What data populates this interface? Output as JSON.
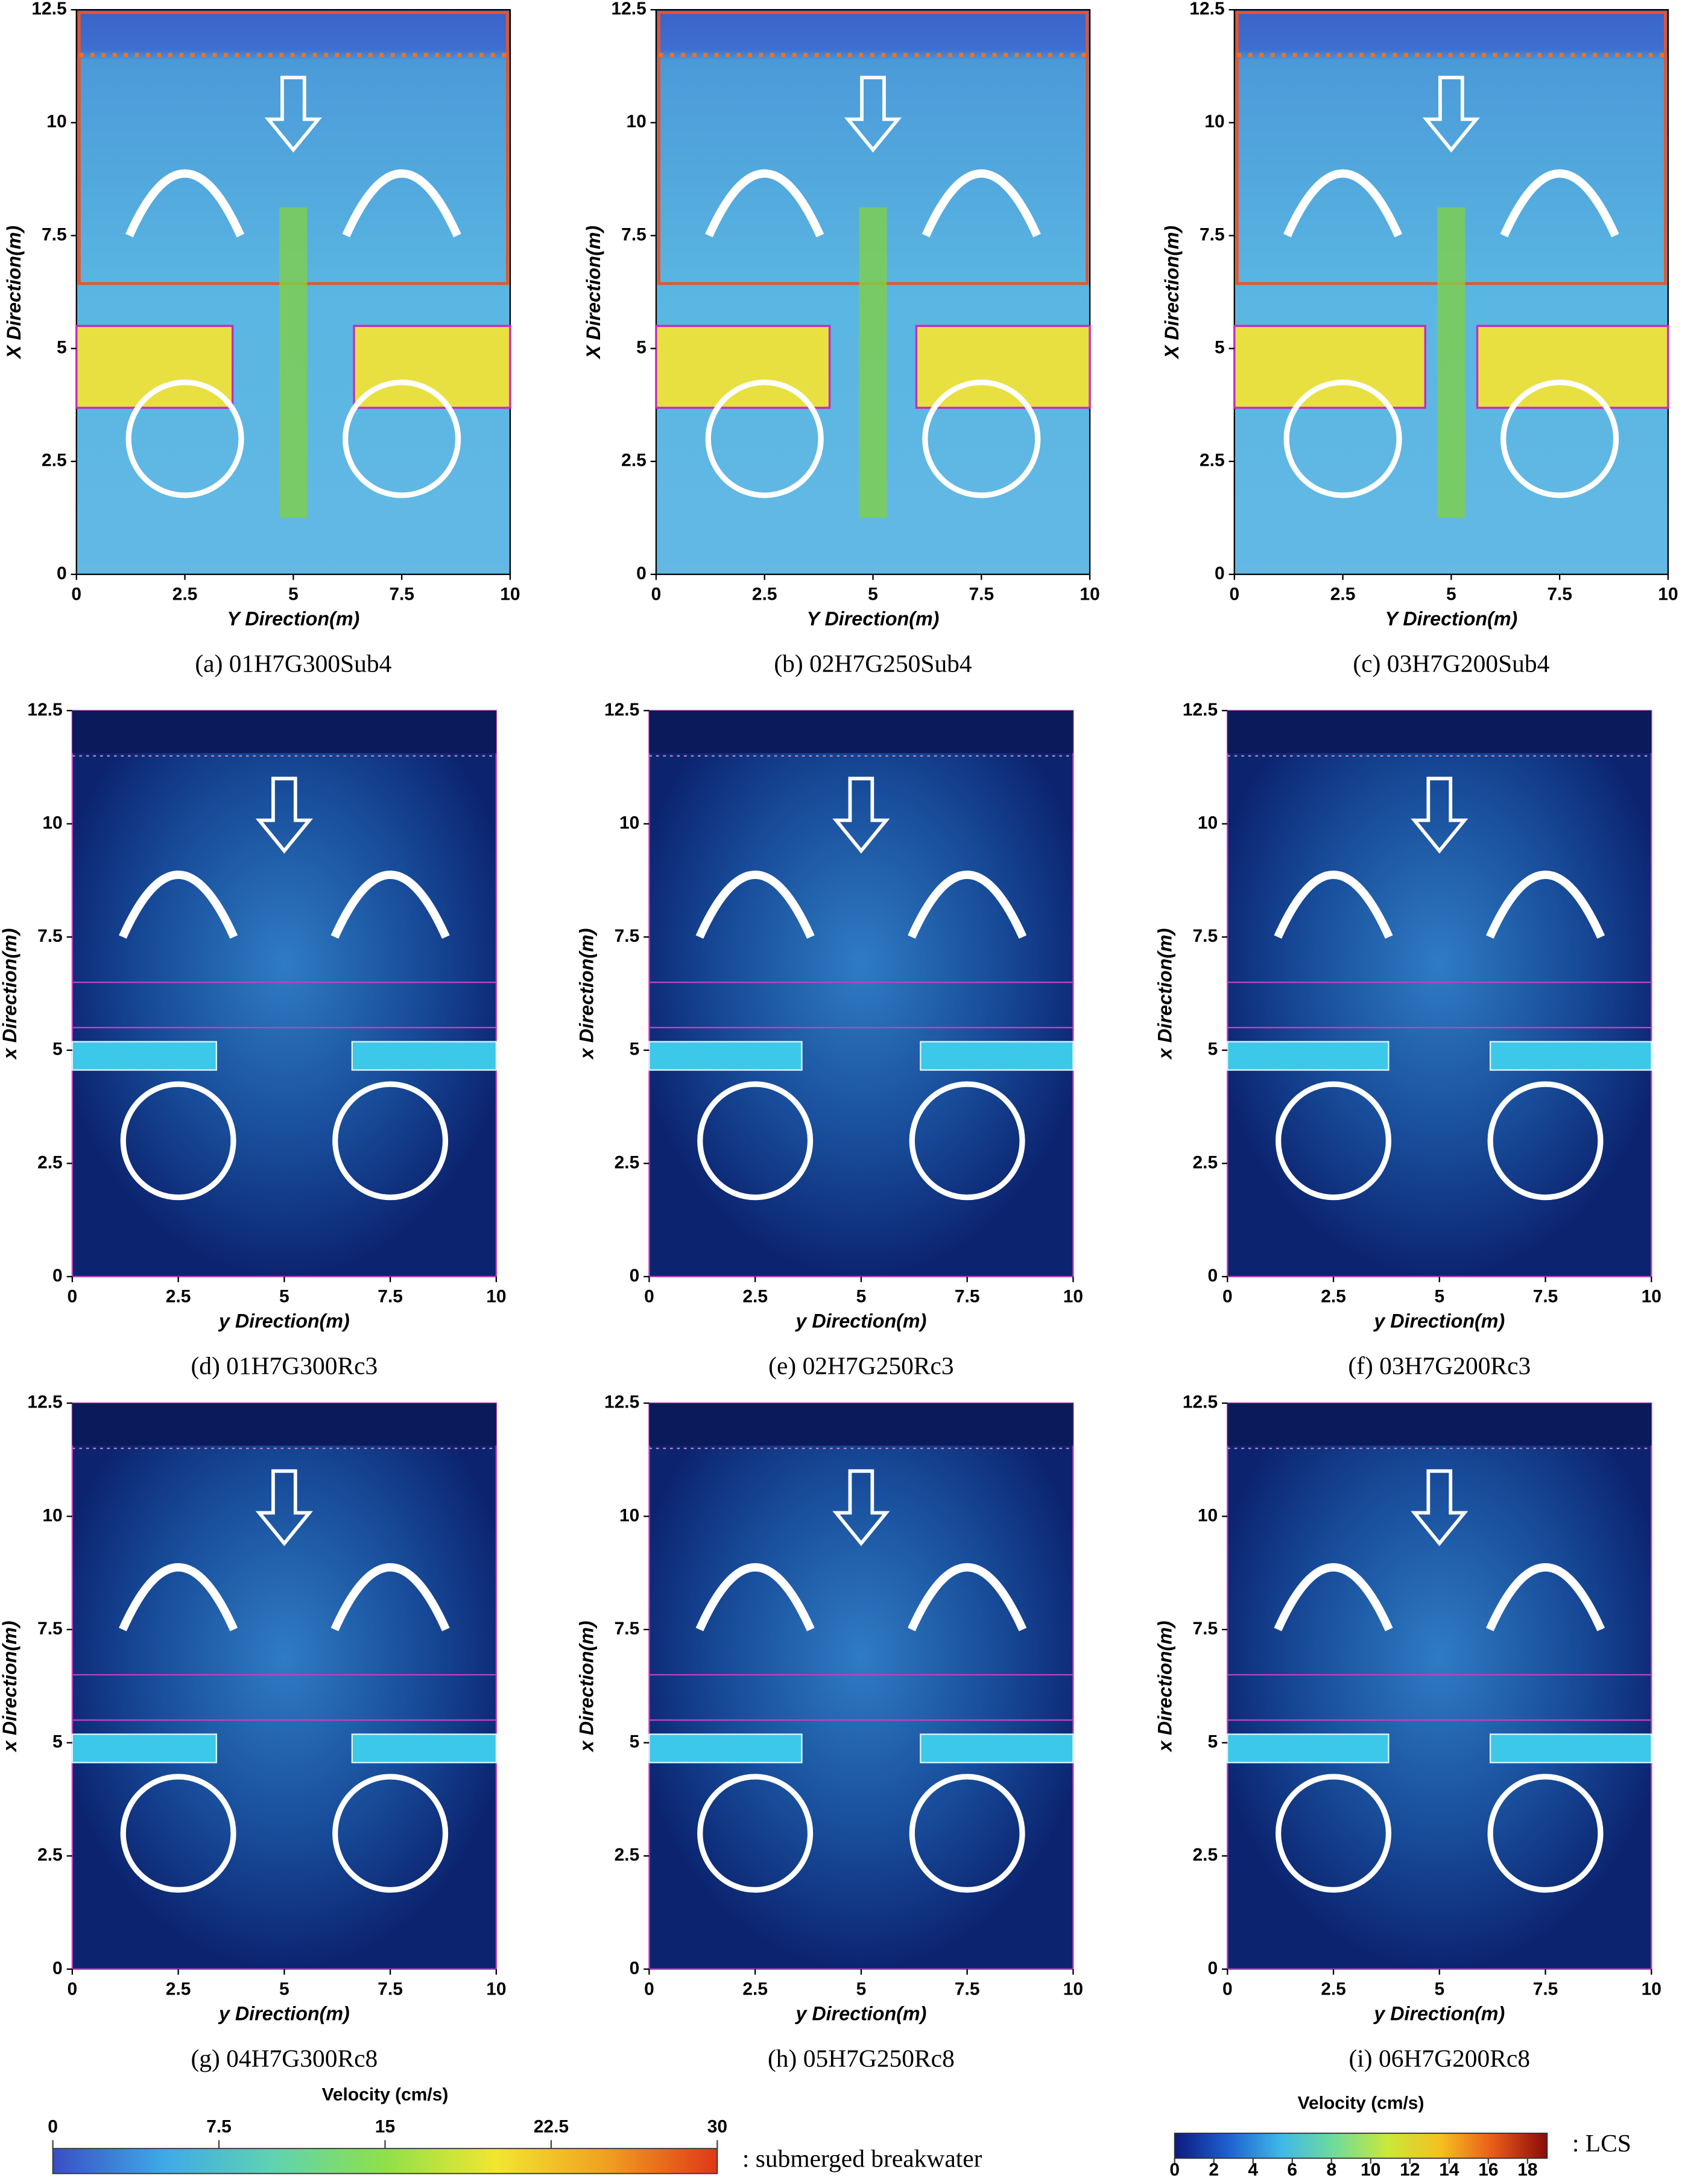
{
  "chart_data": [
    {
      "type": "vector-field",
      "caption": "(a) 01H7G300Sub4",
      "x_label": "Y Direction(m)",
      "y_label": "X Direction(m)",
      "xlim": [
        0,
        10
      ],
      "ylim": [
        0,
        12.5
      ],
      "xticks": [
        0,
        2.5,
        5,
        7.5,
        10
      ],
      "yticks": [
        0,
        2.5,
        5,
        7.5,
        10,
        12.5
      ]
    },
    {
      "type": "vector-field",
      "caption": "(b) 02H7G250Sub4",
      "x_label": "Y Direction(m)",
      "y_label": "X Direction(m)",
      "xlim": [
        0,
        10
      ],
      "ylim": [
        0,
        12.5
      ],
      "xticks": [
        0,
        2.5,
        5,
        7.5,
        10
      ],
      "yticks": [
        0,
        2.5,
        5,
        7.5,
        10,
        12.5
      ]
    },
    {
      "type": "vector-field",
      "caption": "(c) 03H7G200Sub4",
      "x_label": "Y Direction(m)",
      "y_label": "X Direction(m)",
      "xlim": [
        0,
        10
      ],
      "ylim": [
        0,
        12.5
      ],
      "xticks": [
        0,
        2.5,
        5,
        7.5,
        10
      ],
      "yticks": [
        0,
        2.5,
        5,
        7.5,
        10,
        12.5
      ]
    },
    {
      "type": "vector-field",
      "caption": "(d) 01H7G300Rc3",
      "x_label": "y Direction(m)",
      "y_label": "x Direction(m)",
      "xlim": [
        0,
        10
      ],
      "ylim": [
        0,
        12.5
      ],
      "xticks": [
        0,
        2.5,
        5,
        7.5,
        10
      ],
      "yticks": [
        0,
        2.5,
        5,
        7.5,
        10,
        12.5
      ]
    },
    {
      "type": "vector-field",
      "caption": "(e) 02H7G250Rc3",
      "x_label": "y Direction(m)",
      "y_label": "x Direction(m)",
      "xlim": [
        0,
        10
      ],
      "ylim": [
        0,
        12.5
      ],
      "xticks": [
        0,
        2.5,
        5,
        7.5,
        10
      ],
      "yticks": [
        0,
        2.5,
        5,
        7.5,
        10,
        12.5
      ]
    },
    {
      "type": "vector-field",
      "caption": "(f) 03H7G200Rc3",
      "x_label": "y Direction(m)",
      "y_label": "x Direction(m)",
      "xlim": [
        0,
        10
      ],
      "ylim": [
        0,
        12.5
      ],
      "xticks": [
        0,
        2.5,
        5,
        7.5,
        10
      ],
      "yticks": [
        0,
        2.5,
        5,
        7.5,
        10,
        12.5
      ]
    },
    {
      "type": "vector-field",
      "caption": "(g) 04H7G300Rc8",
      "x_label": "y Direction(m)",
      "y_label": "x Direction(m)",
      "xlim": [
        0,
        10
      ],
      "ylim": [
        0,
        12.5
      ],
      "xticks": [
        0,
        2.5,
        5,
        7.5,
        10
      ],
      "yticks": [
        0,
        2.5,
        5,
        7.5,
        10,
        12.5
      ]
    },
    {
      "type": "vector-field",
      "caption": "(h) 05H7G250Rc8",
      "x_label": "y Direction(m)",
      "y_label": "x Direction(m)",
      "xlim": [
        0,
        10
      ],
      "ylim": [
        0,
        12.5
      ],
      "xticks": [
        0,
        2.5,
        5,
        7.5,
        10
      ],
      "yticks": [
        0,
        2.5,
        5,
        7.5,
        10,
        12.5
      ]
    },
    {
      "type": "vector-field",
      "caption": "(i) 06H7G200Rc8",
      "x_label": "y Direction(m)",
      "y_label": "x Direction(m)",
      "xlim": [
        0,
        10
      ],
      "ylim": [
        0,
        12.5
      ],
      "xticks": [
        0,
        2.5,
        5,
        7.5,
        10
      ],
      "yticks": [
        0,
        2.5,
        5,
        7.5,
        10,
        12.5
      ]
    },
    {
      "type": "colorbar",
      "title": "Velocity (cm/s)",
      "note": ": submerged breakwater",
      "lim": [
        0,
        30
      ],
      "ticks": [
        0,
        7.5,
        15,
        22.5,
        30
      ],
      "colors": [
        "#3a4fc4",
        "#3fa9e8",
        "#5fd3b0",
        "#8fe04a",
        "#f2e630",
        "#f0a020",
        "#e03818"
      ]
    },
    {
      "type": "colorbar",
      "title": "Velocity (cm/s)",
      "note": ": LCS",
      "lim": [
        0,
        19
      ],
      "ticks": [
        0,
        2,
        4,
        6,
        8,
        10,
        12,
        14,
        16,
        18
      ],
      "colors": [
        "#0d1a80",
        "#1e5fd0",
        "#3fb8e8",
        "#6fdc9a",
        "#c8e83a",
        "#f5c020",
        "#e85a18",
        "#8a0a0a"
      ]
    }
  ]
}
